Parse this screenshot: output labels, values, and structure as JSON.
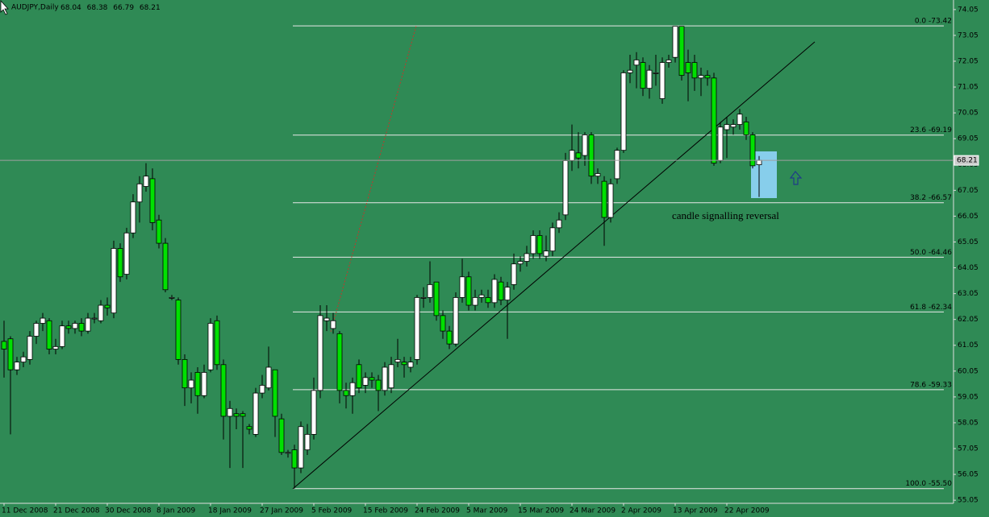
{
  "chart_data": {
    "type": "candlestick",
    "title": "AUDJPY,Daily",
    "annotation": "candle signalling reversal",
    "categories": [
      "11 Dec 2008",
      null,
      null,
      null,
      null,
      null,
      null,
      null,
      "21 Dec 2008",
      null,
      null,
      null,
      null,
      null,
      null,
      null,
      "30 Dec 2008",
      null,
      null,
      null,
      null,
      null,
      null,
      null,
      "8 Jan 2009",
      null,
      null,
      null,
      null,
      null,
      null,
      null,
      "18 Jan 2009",
      null,
      null,
      null,
      null,
      null,
      null,
      null,
      "27 Jan 2009",
      null,
      null,
      null,
      null,
      null,
      null,
      null,
      "5 Feb 2009",
      null,
      null,
      null,
      null,
      null,
      null,
      null,
      "15 Feb 2009",
      null,
      null,
      null,
      null,
      null,
      null,
      null,
      "24 Feb 2009",
      null,
      null,
      null,
      null,
      null,
      null,
      null,
      "5 Mar 2009",
      null,
      null,
      null,
      null,
      null,
      null,
      null,
      "15 Mar 2009",
      null,
      null,
      null,
      null,
      null,
      null,
      null,
      "24 Mar 2009",
      null,
      null,
      null,
      null,
      null,
      null,
      null,
      "2 Apr 2009",
      null,
      null,
      null,
      null,
      null,
      null,
      null,
      "13 Apr 2009",
      null,
      null,
      null,
      null,
      null,
      null,
      null,
      "22 Apr 2009",
      null,
      null,
      null,
      null,
      null
    ],
    "open": [
      61.2,
      61.3,
      60.1,
      60.4,
      60.5,
      61.4,
      61.9,
      62.0,
      60.9,
      61.0,
      61.8,
      61.7,
      61.9,
      61.6,
      62.1,
      62.0,
      62.6,
      62.3,
      64.8,
      63.8,
      65.4,
      66.6,
      67.2,
      67.5,
      65.9,
      65.0,
      62.9,
      62.8,
      60.5,
      59.4,
      60.0,
      59.1,
      60.1,
      62.0,
      60.3,
      58.3,
      58.4,
      58.4,
      57.9,
      57.6,
      59.2,
      59.4,
      60.1,
      58.2,
      56.9,
      57.0,
      56.3,
      57.0,
      57.6,
      59.3,
      62.0,
      61.7,
      61.5,
      59.3,
      59.1,
      60.3,
      59.5,
      59.8,
      59.7,
      59.3,
      59.4,
      60.4,
      60.4,
      60.2,
      60.5,
      62.9,
      62.9,
      63.5,
      62.2,
      61.6,
      61.1,
      62.9,
      63.7,
      62.6,
      62.9,
      62.9,
      62.7,
      63.5,
      62.8,
      63.4,
      64.2,
      64.3,
      64.6,
      65.3,
      64.5,
      64.7,
      65.6,
      66.1,
      68.2,
      68.5,
      68.4,
      69.2,
      67.6,
      67.4,
      66.0,
      67.5,
      68.6,
      71.6,
      71.9,
      72.0,
      71.0,
      71.6,
      70.6,
      72.0,
      72.2,
      73.4,
      72.0,
      72.0,
      71.4,
      71.5,
      71.4,
      68.2,
      69.4,
      69.5,
      69.6,
      69.7,
      69.2,
      68.04
    ],
    "high": [
      62.0,
      61.4,
      60.6,
      60.8,
      61.6,
      62.0,
      62.3,
      62.1,
      61.3,
      62.0,
      62.0,
      62.0,
      62.1,
      62.3,
      62.3,
      62.8,
      62.9,
      65.1,
      65.0,
      65.6,
      66.9,
      67.6,
      68.1,
      67.9,
      66.1,
      65.2,
      63.0,
      62.9,
      60.7,
      60.0,
      60.2,
      60.3,
      62.1,
      62.2,
      60.5,
      58.9,
      58.6,
      58.5,
      58.0,
      59.4,
      59.9,
      61.0,
      60.1,
      58.4,
      57.0,
      57.2,
      58.1,
      58.0,
      59.8,
      62.6,
      62.6,
      62.3,
      61.6,
      59.6,
      59.8,
      60.5,
      60.0,
      60.0,
      59.9,
      60.4,
      60.6,
      61.3,
      60.6,
      60.6,
      63.0,
      63.3,
      64.3,
      63.5,
      62.4,
      61.8,
      63.1,
      64.4,
      63.9,
      63.2,
      63.2,
      63.2,
      63.8,
      63.7,
      63.5,
      64.6,
      64.5,
      64.9,
      65.5,
      65.5,
      65.3,
      65.8,
      66.2,
      68.5,
      69.6,
      69.3,
      69.3,
      69.3,
      67.9,
      67.6,
      67.5,
      68.7,
      71.7,
      72.3,
      72.4,
      72.2,
      71.9,
      72.3,
      72.2,
      72.3,
      73.4,
      73.4,
      72.5,
      72.3,
      71.8,
      71.7,
      71.6,
      69.7,
      69.9,
      69.8,
      70.2,
      69.9,
      69.3,
      68.38
    ],
    "low": [
      59.8,
      57.6,
      59.9,
      60.2,
      60.3,
      61.1,
      61.6,
      60.7,
      60.7,
      60.9,
      61.5,
      61.5,
      61.4,
      61.5,
      61.9,
      61.9,
      62.2,
      62.1,
      63.5,
      63.6,
      65.2,
      65.8,
      67.0,
      65.5,
      64.8,
      63.1,
      62.8,
      60.3,
      58.7,
      58.8,
      58.4,
      59.0,
      60.0,
      60.1,
      57.4,
      56.3,
      57.8,
      56.3,
      57.6,
      57.5,
      59.0,
      59.3,
      57.5,
      56.8,
      56.7,
      55.5,
      56.1,
      56.8,
      57.4,
      59.0,
      61.6,
      61.5,
      58.8,
      58.6,
      58.4,
      59.2,
      59.2,
      59.4,
      58.5,
      59.1,
      59.2,
      60.2,
      59.8,
      60.0,
      60.3,
      62.5,
      62.7,
      62.0,
      61.3,
      60.9,
      61.0,
      62.7,
      62.4,
      62.4,
      62.7,
      62.5,
      62.5,
      62.6,
      61.3,
      63.2,
      63.9,
      64.1,
      64.4,
      64.4,
      64.3,
      64.5,
      65.4,
      65.9,
      67.8,
      67.9,
      68.0,
      67.3,
      67.3,
      64.9,
      65.8,
      67.3,
      68.5,
      71.2,
      71.0,
      70.7,
      70.6,
      71.1,
      70.4,
      71.8,
      72.0,
      71.3,
      70.5,
      70.9,
      70.7,
      71.1,
      68.0,
      68.1,
      68.3,
      69.2,
      69.4,
      69.0,
      67.9,
      66.79
    ],
    "close": [
      60.9,
      60.1,
      60.4,
      60.6,
      61.4,
      61.9,
      62.1,
      60.9,
      61.0,
      61.8,
      61.7,
      61.9,
      61.6,
      62.1,
      62.1,
      62.6,
      62.5,
      64.8,
      63.7,
      65.4,
      66.6,
      67.3,
      67.6,
      65.8,
      65.0,
      63.2,
      62.9,
      60.5,
      59.4,
      59.7,
      59.1,
      60.0,
      61.9,
      60.3,
      58.3,
      58.6,
      58.3,
      58.3,
      57.8,
      59.2,
      59.5,
      60.2,
      58.3,
      56.9,
      56.9,
      56.3,
      57.9,
      57.6,
      59.3,
      62.2,
      62.1,
      62.0,
      59.3,
      59.1,
      59.6,
      59.4,
      59.8,
      59.7,
      59.3,
      60.2,
      60.3,
      60.5,
      60.3,
      60.4,
      62.9,
      62.9,
      63.4,
      62.2,
      61.6,
      61.1,
      62.9,
      63.7,
      62.6,
      62.9,
      63.0,
      62.7,
      63.6,
      62.8,
      63.3,
      64.2,
      64.3,
      64.6,
      65.3,
      64.6,
      64.7,
      65.6,
      65.9,
      68.2,
      68.6,
      68.3,
      69.2,
      67.6,
      67.7,
      66.0,
      67.3,
      68.6,
      71.6,
      71.7,
      72.1,
      71.0,
      71.7,
      71.6,
      72.0,
      72.1,
      73.4,
      71.5,
      71.6,
      71.4,
      71.5,
      71.4,
      68.1,
      69.5,
      69.6,
      69.6,
      70.0,
      69.2,
      68.0,
      68.21
    ],
    "up_color": "#ffffff",
    "down_color": "#00e000",
    "background": "#2f8a55",
    "ylim": [
      54.93,
      74.42
    ],
    "yticks": [
      55.05,
      56.05,
      57.05,
      58.05,
      59.05,
      60.05,
      61.05,
      62.05,
      63.05,
      64.05,
      65.05,
      66.05,
      67.05,
      68.05,
      69.05,
      70.05,
      71.05,
      72.05,
      73.05,
      74.05
    ],
    "fib_levels": [
      {
        "value": 73.42,
        "label": "0.0 -73.42"
      },
      {
        "value": 69.19,
        "label": "23.6 -69.19"
      },
      {
        "value": 66.57,
        "label": "38.2 -66.57"
      },
      {
        "value": 64.46,
        "label": "50.0 -64.46"
      },
      {
        "value": 62.34,
        "label": "61.8 -62.34"
      },
      {
        "value": 59.33,
        "label": "78.6 -59.33"
      },
      {
        "value": 55.5,
        "label": "100.0 -55.50"
      }
    ]
  }
}
